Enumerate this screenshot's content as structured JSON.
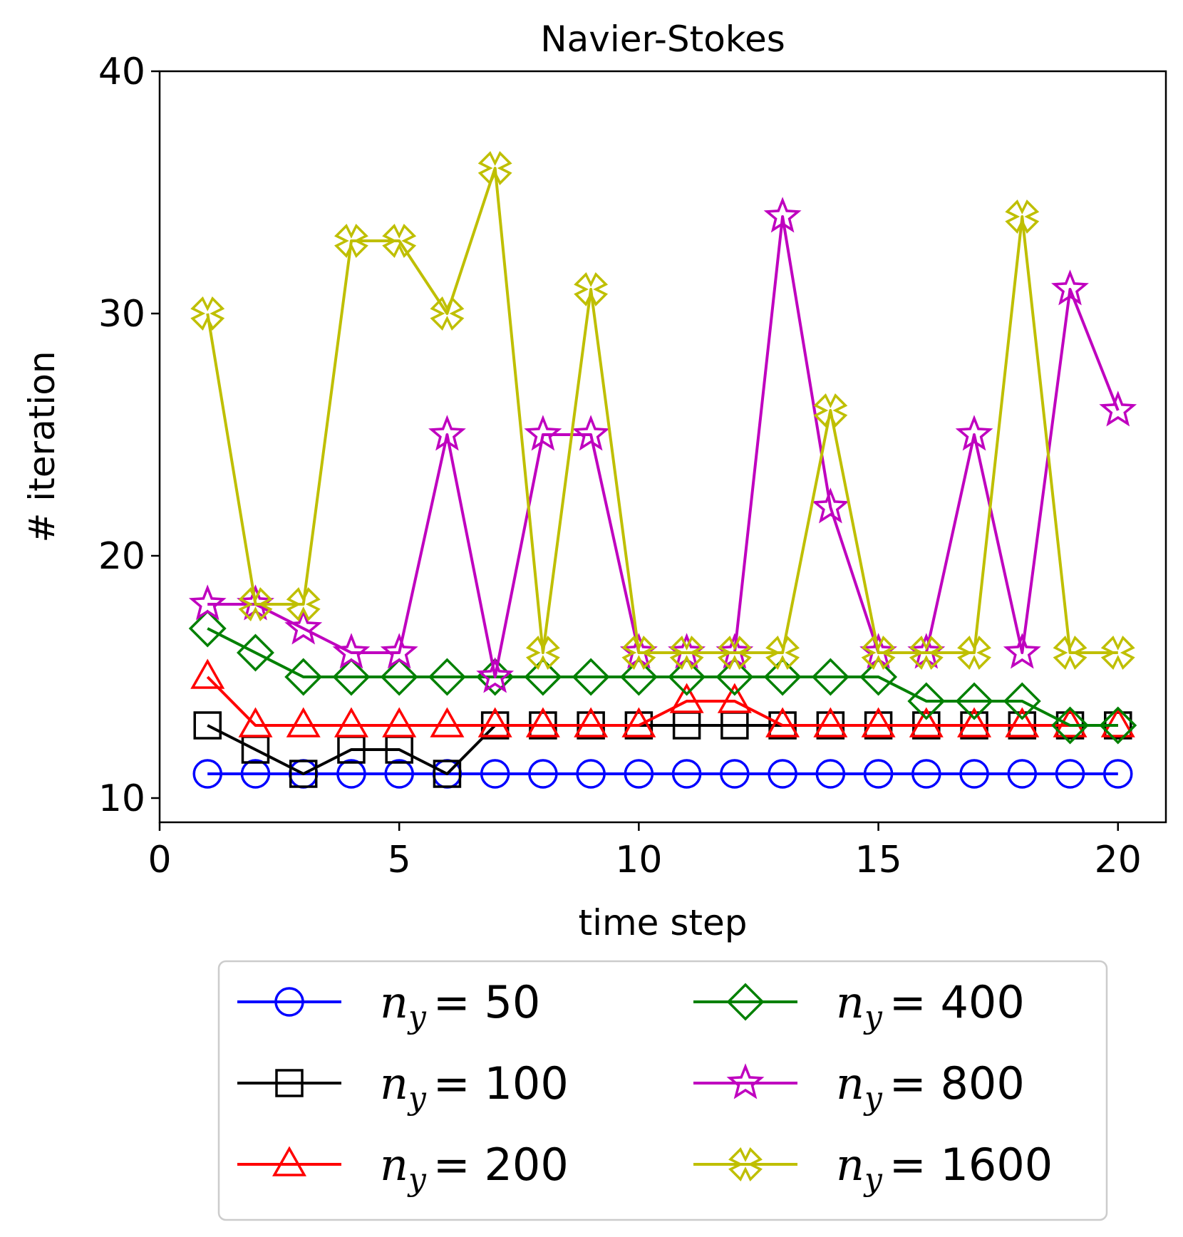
{
  "chart_data": {
    "type": "line",
    "title": "Navier-Stokes",
    "xlabel": "time step",
    "ylabel": "# iteration",
    "xlim": [
      0,
      21
    ],
    "ylim": [
      9,
      40
    ],
    "xticks": [
      0,
      5,
      10,
      15,
      20
    ],
    "yticks": [
      10,
      20,
      30,
      40
    ],
    "grid": false,
    "legend_position": "below",
    "x": [
      1,
      2,
      3,
      4,
      5,
      6,
      7,
      8,
      9,
      10,
      11,
      12,
      13,
      14,
      15,
      16,
      17,
      18,
      19,
      20
    ],
    "series": [
      {
        "name": "n_y = 50",
        "label_sub": "y",
        "label_value": "50",
        "color": "#0000ff",
        "marker": "circle",
        "values": [
          11,
          11,
          11,
          11,
          11,
          11,
          11,
          11,
          11,
          11,
          11,
          11,
          11,
          11,
          11,
          11,
          11,
          11,
          11,
          11
        ]
      },
      {
        "name": "n_y = 100",
        "label_sub": "y",
        "label_value": "100",
        "color": "#000000",
        "marker": "square",
        "values": [
          13,
          12,
          11,
          12,
          12,
          11,
          13,
          13,
          13,
          13,
          13,
          13,
          13,
          13,
          13,
          13,
          13,
          13,
          13,
          13
        ]
      },
      {
        "name": "n_y = 200",
        "label_sub": "y",
        "label_value": "200",
        "color": "#ff0000",
        "marker": "triangle",
        "values": [
          15,
          13,
          13,
          13,
          13,
          13,
          13,
          13,
          13,
          13,
          14,
          14,
          13,
          13,
          13,
          13,
          13,
          13,
          13,
          13
        ]
      },
      {
        "name": "n_y = 400",
        "label_sub": "y",
        "label_value": "400",
        "color": "#008000",
        "marker": "diamond",
        "values": [
          17,
          16,
          15,
          15,
          15,
          15,
          15,
          15,
          15,
          15,
          15,
          15,
          15,
          15,
          15,
          14,
          14,
          14,
          13,
          13
        ]
      },
      {
        "name": "n_y = 800",
        "label_sub": "y",
        "label_value": "800",
        "color": "#bf00bf",
        "marker": "star",
        "values": [
          18,
          18,
          17,
          16,
          16,
          25,
          15,
          25,
          25,
          16,
          16,
          16,
          34,
          22,
          16,
          16,
          25,
          16,
          31,
          26
        ]
      },
      {
        "name": "n_y = 1600",
        "label_sub": "y",
        "label_value": "1600",
        "color": "#bfbf00",
        "marker": "x-filled",
        "values": [
          30,
          18,
          18,
          33,
          33,
          30,
          36,
          16,
          31,
          16,
          16,
          16,
          16,
          26,
          16,
          16,
          16,
          34,
          16,
          16
        ]
      }
    ]
  }
}
